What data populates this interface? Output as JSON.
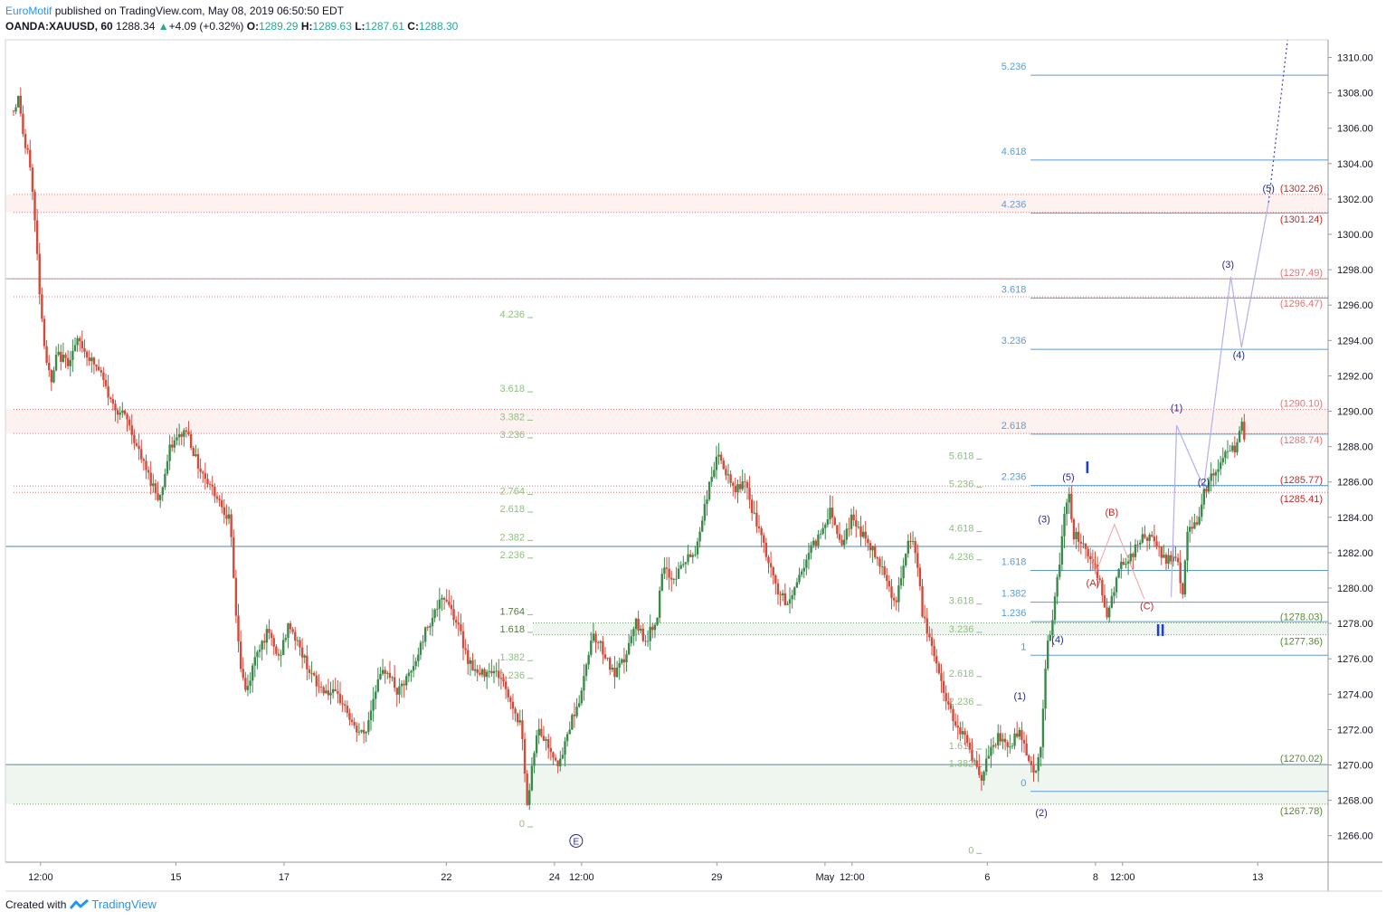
{
  "header": {
    "author": "EuroMotif",
    "published": " published on TradingView.com, May 08, 2019 06:50:50 EDT",
    "symbol": "OANDA:XAUUSD, 60",
    "last": "1288.34",
    "change": "+4.09 (+0.32%)",
    "o_label": "O:",
    "o": "1289.29",
    "h_label": "H:",
    "h": "1289.63",
    "l_label": "L:",
    "l": "1287.61",
    "c_label": "C:",
    "c": "1288.30"
  },
  "footer": {
    "created": "Created with",
    "brand": "TradingView"
  },
  "colors": {
    "up": "#26a69a",
    "down": "#ef5350",
    "candle_up": "#3a8a4a",
    "candle_down": "#d44a3a",
    "fib_blue": "#5b9bd5",
    "fib_green": "#8fbf7f",
    "wave": "#2a2a8a",
    "corr": "#c62828",
    "resistance": "#e57373",
    "support": "#66a266"
  },
  "chart_data": {
    "type": "candlestick",
    "symbol": "OANDA:XAUUSD",
    "timeframe": "60",
    "ylim": [
      1264.5,
      1311.0
    ],
    "y_ticks": [
      "1266.00",
      "1268.00",
      "1270.00",
      "1272.00",
      "1274.00",
      "1276.00",
      "1278.00",
      "1280.00",
      "1282.00",
      "1284.00",
      "1286.00",
      "1288.00",
      "1290.00",
      "1292.00",
      "1294.00",
      "1296.00",
      "1298.00",
      "1300.00",
      "1302.00",
      "1304.00",
      "1306.00",
      "1308.00",
      "1310.00"
    ],
    "x_ticks": [
      {
        "label": "12:00",
        "x": 0.5
      },
      {
        "label": "15",
        "x": 3
      },
      {
        "label": "17",
        "x": 5
      },
      {
        "label": "22",
        "x": 8
      },
      {
        "label": "24",
        "x": 10
      },
      {
        "label": "12:00",
        "x": 10.5
      },
      {
        "label": "29",
        "x": 13
      },
      {
        "label": "May",
        "x": 15
      },
      {
        "label": "12:00",
        "x": 15.5
      },
      {
        "label": "6",
        "x": 18
      },
      {
        "label": "8",
        "x": 20
      },
      {
        "label": "12:00",
        "x": 20.5
      },
      {
        "label": "13",
        "x": 23
      }
    ],
    "x_range": [
      -0.15,
      24.3
    ],
    "price_path": [
      [
        0,
        1307.0
      ],
      [
        0.1,
        1307.8
      ],
      [
        0.2,
        1305.0
      ],
      [
        0.3,
        1304.2
      ],
      [
        0.4,
        1300.5
      ],
      [
        0.5,
        1296.0
      ],
      [
        0.6,
        1293.0
      ],
      [
        0.7,
        1291.5
      ],
      [
        0.8,
        1293.2
      ],
      [
        1.0,
        1292.8
      ],
      [
        1.2,
        1294.0
      ],
      [
        1.4,
        1293.0
      ],
      [
        1.6,
        1292.2
      ],
      [
        1.8,
        1290.5
      ],
      [
        2.1,
        1289.5
      ],
      [
        2.4,
        1287.0
      ],
      [
        2.7,
        1285.0
      ],
      [
        2.9,
        1288.0
      ],
      [
        3.2,
        1289.0
      ],
      [
        3.4,
        1287.0
      ],
      [
        3.6,
        1286.0
      ],
      [
        3.8,
        1285.0
      ],
      [
        4.0,
        1283.8
      ],
      [
        4.1,
        1279.0
      ],
      [
        4.2,
        1275.5
      ],
      [
        4.3,
        1274.0
      ],
      [
        4.5,
        1276.5
      ],
      [
        4.7,
        1277.5
      ],
      [
        4.9,
        1276.0
      ],
      [
        5.1,
        1278.0
      ],
      [
        5.3,
        1276.5
      ],
      [
        5.6,
        1274.5
      ],
      [
        5.9,
        1274.0
      ],
      [
        6.1,
        1273.5
      ],
      [
        6.3,
        1272.0
      ],
      [
        6.5,
        1271.7
      ],
      [
        6.7,
        1274.5
      ],
      [
        6.9,
        1275.5
      ],
      [
        7.1,
        1274.0
      ],
      [
        7.4,
        1275.5
      ],
      [
        7.6,
        1277.5
      ],
      [
        7.8,
        1278.8
      ],
      [
        8.0,
        1279.5
      ],
      [
        8.2,
        1278.0
      ],
      [
        8.4,
        1276.0
      ],
      [
        8.6,
        1275.0
      ],
      [
        8.8,
        1275.5
      ],
      [
        9.0,
        1275.0
      ],
      [
        9.2,
        1273.5
      ],
      [
        9.4,
        1272.0
      ],
      [
        9.5,
        1267.5
      ],
      [
        9.6,
        1270.5
      ],
      [
        9.7,
        1272.0
      ],
      [
        9.9,
        1271.0
      ],
      [
        10.1,
        1270.0
      ],
      [
        10.3,
        1272.5
      ],
      [
        10.5,
        1274.0
      ],
      [
        10.6,
        1276.0
      ],
      [
        10.7,
        1277.5
      ],
      [
        10.9,
        1276.5
      ],
      [
        11.1,
        1275.0
      ],
      [
        11.3,
        1276.0
      ],
      [
        11.5,
        1278.0
      ],
      [
        11.7,
        1277.0
      ],
      [
        11.9,
        1278.5
      ],
      [
        12.0,
        1281.0
      ],
      [
        12.2,
        1280.5
      ],
      [
        12.4,
        1281.5
      ],
      [
        12.6,
        1282.0
      ],
      [
        12.8,
        1285.0
      ],
      [
        13.0,
        1287.5
      ],
      [
        13.1,
        1287.0
      ],
      [
        13.3,
        1285.5
      ],
      [
        13.5,
        1286.0
      ],
      [
        13.7,
        1284.0
      ],
      [
        13.9,
        1282.0
      ],
      [
        14.1,
        1280.0
      ],
      [
        14.3,
        1279.0
      ],
      [
        14.5,
        1280.5
      ],
      [
        14.7,
        1282.0
      ],
      [
        14.9,
        1283.0
      ],
      [
        15.1,
        1284.5
      ],
      [
        15.3,
        1282.5
      ],
      [
        15.5,
        1284.0
      ],
      [
        15.7,
        1283.0
      ],
      [
        15.9,
        1282.0
      ],
      [
        16.1,
        1281.0
      ],
      [
        16.3,
        1279.0
      ],
      [
        16.5,
        1282.0
      ],
      [
        16.6,
        1283.0
      ],
      [
        16.7,
        1281.5
      ],
      [
        16.8,
        1278.5
      ],
      [
        17.0,
        1276.5
      ],
      [
        17.2,
        1274.0
      ],
      [
        17.4,
        1272.5
      ],
      [
        17.6,
        1271.5
      ],
      [
        17.8,
        1269.8
      ],
      [
        17.9,
        1268.8
      ],
      [
        18.0,
        1270.5
      ],
      [
        18.2,
        1271.5
      ],
      [
        18.4,
        1271.0
      ],
      [
        18.6,
        1272.0
      ],
      [
        18.8,
        1270.0
      ],
      [
        18.9,
        1269.5
      ],
      [
        19.0,
        1271.5
      ],
      [
        19.1,
        1276.5
      ],
      [
        19.2,
        1278.0
      ],
      [
        19.3,
        1280.5
      ],
      [
        19.4,
        1283.5
      ],
      [
        19.5,
        1285.5
      ],
      [
        19.6,
        1283.0
      ],
      [
        19.8,
        1282.5
      ],
      [
        20.0,
        1281.0
      ],
      [
        20.1,
        1280.5
      ],
      [
        20.2,
        1278.0
      ],
      [
        20.3,
        1279.5
      ],
      [
        20.5,
        1281.5
      ],
      [
        20.7,
        1282.0
      ],
      [
        20.9,
        1283.0
      ],
      [
        21.1,
        1282.5
      ],
      [
        21.3,
        1281.5
      ],
      [
        21.5,
        1282.0
      ],
      [
        21.6,
        1279.5
      ],
      [
        21.7,
        1283.0
      ],
      [
        21.9,
        1284.0
      ],
      [
        22.0,
        1285.5
      ],
      [
        22.2,
        1286.5
      ],
      [
        22.4,
        1287.5
      ],
      [
        22.6,
        1288.0
      ],
      [
        22.7,
        1289.3
      ],
      [
        22.75,
        1288.3
      ]
    ],
    "levels": [
      {
        "price": 1302.26,
        "label": "(1302.26)",
        "kind": "resistance",
        "x_start": 0
      },
      {
        "price": 1301.24,
        "label": "(1301.24)",
        "kind": "resistance",
        "x_start": 0
      },
      {
        "price": 1297.49,
        "label": "(1297.49)",
        "kind": "resistance",
        "x_start": 0
      },
      {
        "price": 1296.47,
        "label": "(1296.47)",
        "kind": "resistance",
        "x_start": 0
      },
      {
        "price": 1290.1,
        "label": "(1290.10)",
        "kind": "resistance",
        "x_start": 0
      },
      {
        "price": 1288.74,
        "label": "(1288.74)",
        "kind": "resistance",
        "x_start": 0
      },
      {
        "price": 1285.77,
        "label": "(1285.77)",
        "kind": "resistance",
        "x_start": 0
      },
      {
        "price": 1285.41,
        "label": "(1285.41)",
        "kind": "resistance",
        "x_start": 0
      },
      {
        "price": 1278.03,
        "label": "(1278.03)",
        "kind": "support",
        "x_start": 9.6
      },
      {
        "price": 1277.36,
        "label": "(1277.36)",
        "kind": "support",
        "x_start": 9.6
      },
      {
        "price": 1270.02,
        "label": "(1270.02)",
        "kind": "support",
        "x_start": 0
      },
      {
        "price": 1267.78,
        "label": "(1267.78)",
        "kind": "support",
        "x_start": 0
      }
    ],
    "zones": [
      {
        "from": 1301.24,
        "to": 1302.26,
        "kind": "resistance"
      },
      {
        "from": 1288.74,
        "to": 1290.1,
        "kind": "resistance"
      },
      {
        "from": 1277.36,
        "to": 1278.03,
        "kind": "support"
      },
      {
        "from": 1267.78,
        "to": 1270.02,
        "kind": "support"
      }
    ],
    "hlines": [
      {
        "price": 1297.49,
        "color": "#9e9e9e"
      },
      {
        "price": 1282.35,
        "color": "#4f86b4"
      },
      {
        "price": 1270.02,
        "color": "#4f86b4"
      }
    ],
    "fib_blue": [
      {
        "ratio": "5.236",
        "price": 1309.0
      },
      {
        "ratio": "4.618",
        "price": 1304.2
      },
      {
        "ratio": "4.236",
        "price": 1301.2
      },
      {
        "ratio": "3.618",
        "price": 1296.4
      },
      {
        "ratio": "3.236",
        "price": 1293.5
      },
      {
        "ratio": "2.618",
        "price": 1288.7
      },
      {
        "ratio": "2.236",
        "price": 1285.8
      },
      {
        "ratio": "1.618",
        "price": 1281.0
      },
      {
        "ratio": "1.382",
        "price": 1279.2
      },
      {
        "ratio": "1.236",
        "price": 1278.1
      },
      {
        "ratio": "1",
        "price": 1276.2
      },
      {
        "ratio": "0",
        "price": 1268.5
      }
    ],
    "fib_green_a": [
      {
        "ratio": "4.236",
        "price": 1295.5
      },
      {
        "ratio": "3.618",
        "price": 1291.3
      },
      {
        "ratio": "3.382",
        "price": 1289.7
      },
      {
        "ratio": "3.236",
        "price": 1288.7
      },
      {
        "ratio": "2.764",
        "price": 1285.5
      },
      {
        "ratio": "2.618",
        "price": 1284.5
      },
      {
        "ratio": "2.382",
        "price": 1282.9
      },
      {
        "ratio": "2.236",
        "price": 1281.9
      },
      {
        "ratio": "1.764",
        "price": 1278.7
      },
      {
        "ratio": "1.618",
        "price": 1277.7
      },
      {
        "ratio": "1.382",
        "price": 1276.1
      },
      {
        "ratio": "1.236",
        "price": 1275.1
      },
      {
        "ratio": "0",
        "price": 1266.7
      }
    ],
    "fib_green_b": [
      {
        "ratio": "5.618",
        "price": 1287.5
      },
      {
        "ratio": "5.236",
        "price": 1285.9
      },
      {
        "ratio": "4.618",
        "price": 1283.4
      },
      {
        "ratio": "4.236",
        "price": 1281.8
      },
      {
        "ratio": "3.618",
        "price": 1279.3
      },
      {
        "ratio": "3.236",
        "price": 1277.7
      },
      {
        "ratio": "2.618",
        "price": 1275.2
      },
      {
        "ratio": "2.236",
        "price": 1273.6
      },
      {
        "ratio": "1.618",
        "price": 1271.1
      },
      {
        "ratio": "1.382",
        "price": 1270.1
      },
      {
        "ratio": "0",
        "price": 1265.2
      }
    ],
    "wave_labels": [
      {
        "text": "(1)",
        "x": 18.6,
        "price": 1273.7,
        "color": "wave"
      },
      {
        "text": "(2)",
        "x": 19.0,
        "price": 1267.1,
        "color": "wave"
      },
      {
        "text": "(3)",
        "x": 19.05,
        "price": 1283.7,
        "color": "wave"
      },
      {
        "text": "(4)",
        "x": 19.3,
        "price": 1276.9,
        "color": "wave"
      },
      {
        "text": "(5)",
        "x": 19.5,
        "price": 1286.1,
        "color": "wave"
      },
      {
        "text": "I",
        "x": 19.85,
        "price": 1286.5,
        "color": "wave"
      },
      {
        "text": "(A)",
        "x": 19.95,
        "price": 1280.1,
        "color": "corr"
      },
      {
        "text": "(B)",
        "x": 20.3,
        "price": 1284.1,
        "color": "corr"
      },
      {
        "text": "(C)",
        "x": 20.95,
        "price": 1278.8,
        "color": "corr"
      },
      {
        "text": "II",
        "x": 21.2,
        "price": 1277.3,
        "color": "wave"
      },
      {
        "text": "(1)",
        "x": 21.5,
        "price": 1290.0,
        "color": "wave"
      },
      {
        "text": "(2)",
        "x": 22.0,
        "price": 1285.8,
        "color": "wave"
      },
      {
        "text": "(3)",
        "x": 22.45,
        "price": 1298.1,
        "color": "wave"
      },
      {
        "text": "(4)",
        "x": 22.65,
        "price": 1293.0,
        "color": "wave"
      },
      {
        "text": "(5)",
        "x": 23.2,
        "price": 1302.4,
        "color": "wave"
      },
      {
        "text": "E",
        "x": 10.4,
        "price": 1265.5,
        "color": "wave"
      }
    ],
    "projection": [
      [
        21.4,
        1279.5
      ],
      [
        21.5,
        1289.2
      ],
      [
        22.0,
        1285.7
      ],
      [
        22.5,
        1297.6
      ],
      [
        22.7,
        1293.6
      ],
      [
        23.2,
        1301.8
      ]
    ],
    "projection_extension": [
      [
        23.2,
        1301.8
      ],
      [
        23.55,
        1311.0
      ]
    ],
    "abc_path": [
      [
        19.9,
        1282.2
      ],
      [
        20.0,
        1280.8
      ],
      [
        20.35,
        1283.6
      ],
      [
        20.9,
        1279.4
      ]
    ]
  }
}
